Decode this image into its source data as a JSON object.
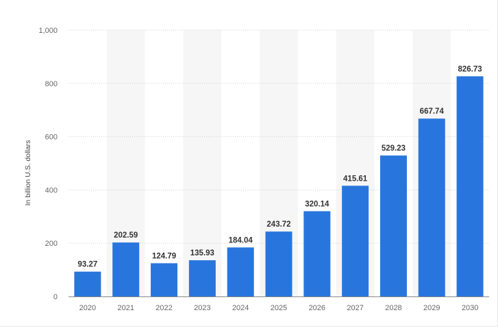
{
  "chart_data": {
    "type": "bar",
    "categories": [
      "2020",
      "2021",
      "2022",
      "2023",
      "2024",
      "2025",
      "2026",
      "2027",
      "2028",
      "2029",
      "2030"
    ],
    "series": [
      {
        "values": [
          93.27,
          202.59,
          124.79,
          135.93,
          184.04,
          243.72,
          320.14,
          415.61,
          529.23,
          667.74,
          826.73
        ],
        "color": "#2876dd"
      }
    ],
    "value_labels": [
      "93.27",
      "202.59",
      "124.79",
      "135.93",
      "184.04",
      "243.72",
      "320.14",
      "415.61",
      "529.23",
      "667.74",
      "826.73"
    ],
    "ylabel": "In billion U.S. dollars",
    "xlabel": "",
    "title": "",
    "ylim": [
      0,
      1000
    ],
    "yticks": [
      0,
      200,
      400,
      600,
      800,
      1000
    ],
    "ytick_labels": [
      "0",
      "200",
      "400",
      "600",
      "800",
      "1,000"
    ],
    "grid": "horizontal-dotted",
    "alternating_bands": true,
    "band_color": "#f6f6f6"
  }
}
